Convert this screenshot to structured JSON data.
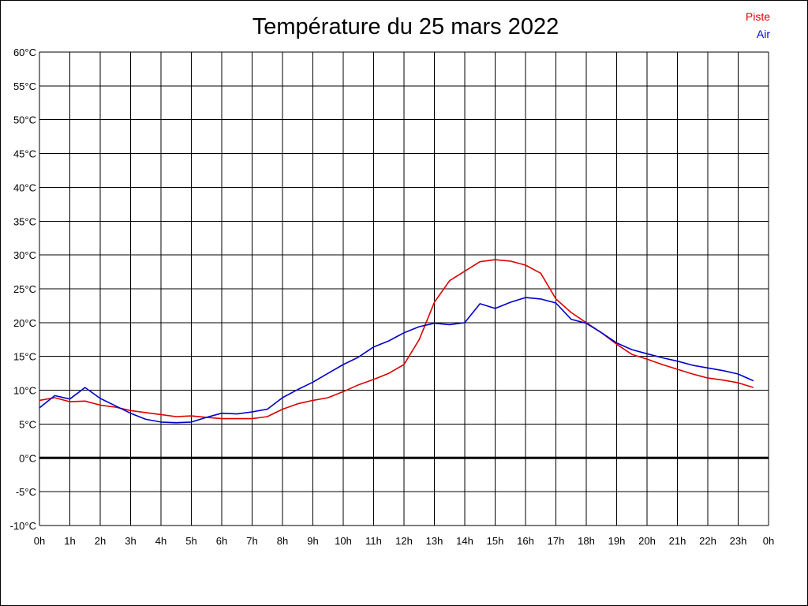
{
  "chart_data": {
    "type": "line",
    "title": "Température du 25 mars 2022",
    "xlabel": "",
    "ylabel": "",
    "ylim": [
      -10,
      60
    ],
    "y_ticks": [
      "60°C",
      "55°C",
      "50°C",
      "45°C",
      "40°C",
      "35°C",
      "30°C",
      "25°C",
      "20°C",
      "15°C",
      "10°C",
      "5°C",
      "0°C",
      "-5°C",
      "-10°C"
    ],
    "y_tick_values": [
      60,
      55,
      50,
      45,
      40,
      35,
      30,
      25,
      20,
      15,
      10,
      5,
      0,
      -5,
      -10
    ],
    "x_ticks": [
      "0h",
      "1h",
      "2h",
      "3h",
      "4h",
      "5h",
      "6h",
      "7h",
      "8h",
      "9h",
      "10h",
      "11h",
      "12h",
      "13h",
      "14h",
      "15h",
      "16h",
      "17h",
      "18h",
      "19h",
      "20h",
      "21h",
      "22h",
      "23h",
      "0h"
    ],
    "xlim": [
      0,
      24
    ],
    "grid": true,
    "zero_line": true,
    "legend_position": "top-right",
    "x": [
      0,
      0.5,
      1,
      1.5,
      2,
      2.5,
      3,
      3.5,
      4,
      4.5,
      5,
      5.5,
      6,
      6.5,
      7,
      7.5,
      8,
      8.5,
      9,
      9.5,
      10,
      10.5,
      11,
      11.5,
      12,
      12.5,
      13,
      13.5,
      14,
      14.5,
      15,
      15.5,
      16,
      16.5,
      17,
      17.5,
      18,
      18.5,
      19,
      19.5,
      20,
      20.5,
      21,
      21.5,
      22,
      22.5,
      23,
      23.5
    ],
    "series": [
      {
        "name": "Piste",
        "color": "#dd0000",
        "values": [
          8.5,
          8.9,
          8.3,
          8.4,
          7.8,
          7.5,
          7.0,
          6.7,
          6.4,
          6.1,
          6.2,
          6.0,
          5.8,
          5.8,
          5.8,
          6.1,
          7.2,
          8.0,
          8.5,
          8.9,
          9.8,
          10.8,
          11.6,
          12.5,
          13.8,
          17.5,
          23.0,
          26.2,
          27.6,
          29.0,
          29.3,
          29.1,
          28.5,
          27.3,
          23.5,
          21.5,
          20.0,
          18.5,
          16.8,
          15.3,
          14.6,
          13.8,
          13.1,
          12.4,
          11.8,
          11.5,
          11.1,
          10.4
        ]
      },
      {
        "name": "Air",
        "color": "#0000cc",
        "values": [
          7.4,
          9.2,
          8.7,
          10.4,
          8.8,
          7.7,
          6.6,
          5.7,
          5.3,
          5.2,
          5.3,
          6.0,
          6.6,
          6.5,
          6.8,
          7.2,
          8.9,
          10.1,
          11.2,
          12.5,
          13.8,
          14.9,
          16.4,
          17.3,
          18.5,
          19.4,
          19.9,
          19.7,
          20.0,
          22.8,
          22.1,
          23.0,
          23.7,
          23.5,
          22.9,
          20.5,
          19.9,
          18.5,
          17.0,
          16.0,
          15.4,
          14.8,
          14.3,
          13.7,
          13.3,
          12.9,
          12.4,
          11.4
        ]
      }
    ]
  }
}
